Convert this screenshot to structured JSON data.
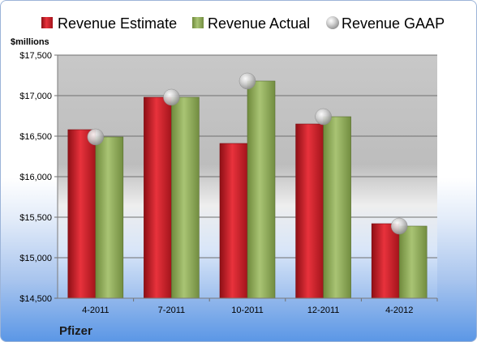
{
  "chart_data": {
    "type": "bar",
    "ylabel": "$millions",
    "ylim": [
      14500,
      17500
    ],
    "ytick_step": 500,
    "yticks": [
      "$14,500",
      "$15,000",
      "$15,500",
      "$16,000",
      "$16,500",
      "$17,000",
      "$17,500"
    ],
    "categories": [
      "4-2011",
      "7-2011",
      "10-2011",
      "12-2011",
      "4-2012"
    ],
    "series": [
      {
        "name": "Revenue Estimate",
        "kind": "bar",
        "color": "#c8202a",
        "values": [
          16580,
          16980,
          16410,
          16650,
          15420
        ]
      },
      {
        "name": "Revenue Actual",
        "kind": "bar",
        "color": "#8fae5a",
        "values": [
          16490,
          16980,
          17180,
          16740,
          15390
        ]
      },
      {
        "name": "Revenue GAAP",
        "kind": "marker",
        "color": "#b8b8b8",
        "values": [
          16490,
          16980,
          17180,
          16740,
          15390
        ]
      }
    ],
    "grid": true,
    "legend_position": "top"
  },
  "company": "Pfizer"
}
